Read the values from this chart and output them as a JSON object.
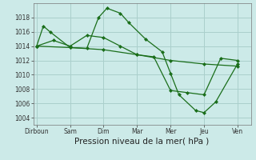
{
  "background_color": "#cceae8",
  "grid_color": "#aacfcc",
  "line_color": "#1a6e1a",
  "marker_color": "#1a6e1a",
  "xlabel": "Pression niveau de la mer( hPa )",
  "xlabel_fontsize": 7.5,
  "ylim": [
    1003,
    1020
  ],
  "yticks": [
    1004,
    1006,
    1008,
    1010,
    1012,
    1014,
    1016,
    1018
  ],
  "x_labels": [
    "Dirboun",
    "Sam",
    "Dim",
    "Mar",
    "Mer",
    "Jeu",
    "Ven"
  ],
  "x_positions": [
    0,
    2,
    4,
    6,
    8,
    10,
    12
  ],
  "series1_x": [
    0,
    0.4,
    0.8,
    2.0,
    3.0,
    3.7,
    4.2,
    5.0,
    5.5,
    6.5,
    7.5,
    8.0,
    8.5,
    9.5,
    10.0,
    10.7,
    12.0
  ],
  "series1_y": [
    1014.0,
    1016.8,
    1016.0,
    1013.8,
    1013.7,
    1018.0,
    1019.3,
    1018.6,
    1017.3,
    1015.0,
    1013.2,
    1010.2,
    1007.2,
    1005.0,
    1004.7,
    1006.2,
    1011.5
  ],
  "series2_x": [
    0,
    1,
    2,
    3,
    4,
    5,
    6,
    7,
    8,
    9,
    10,
    11,
    12
  ],
  "series2_y": [
    1014.0,
    1014.8,
    1014.0,
    1015.5,
    1015.2,
    1014.0,
    1012.8,
    1012.5,
    1007.8,
    1007.5,
    1007.2,
    1012.3,
    1012.0
  ],
  "series3_x": [
    0,
    2,
    4,
    6,
    8,
    10,
    12
  ],
  "series3_y": [
    1014.0,
    1013.8,
    1013.5,
    1012.8,
    1012.0,
    1011.5,
    1011.2
  ]
}
